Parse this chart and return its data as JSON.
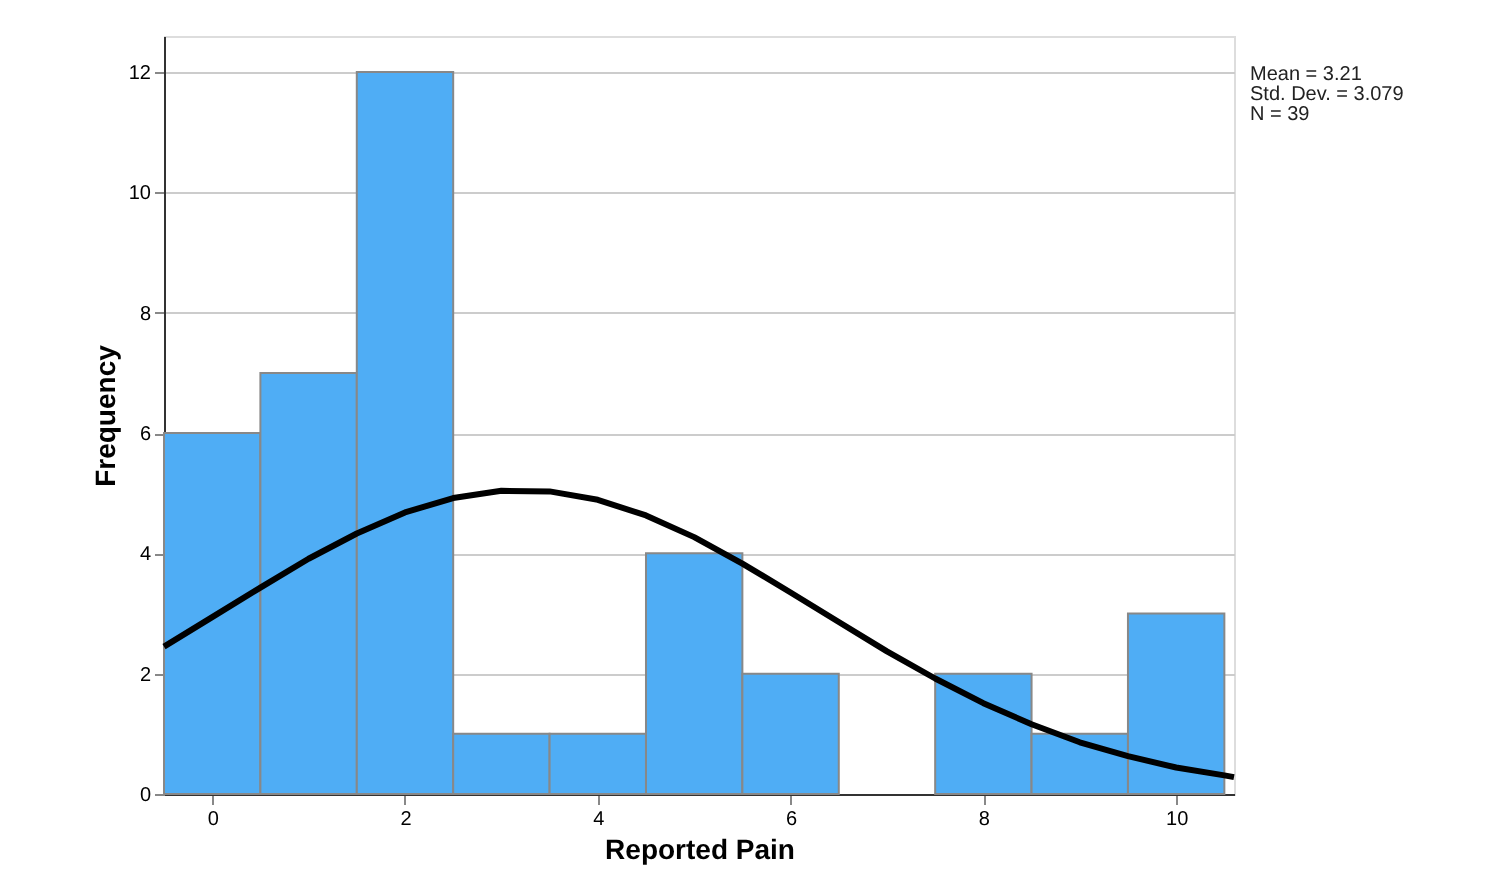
{
  "chart_data": {
    "type": "histogram",
    "xlabel": "Reported Pain",
    "ylabel": "Frequency",
    "bins": [
      -0.5,
      0.5,
      1.5,
      2.5,
      3.5,
      4.5,
      5.5,
      6.5,
      7.5,
      8.5,
      9.5,
      10.5
    ],
    "values": [
      6,
      7,
      12,
      1,
      1,
      4,
      2,
      0,
      2,
      1,
      3
    ],
    "color": "#4fadf5",
    "series": [
      {
        "type": "line",
        "color": "#000000",
        "x": [
          -0.5,
          0,
          0.5,
          1,
          1.5,
          2,
          2.5,
          3,
          3.5,
          4,
          4.5,
          5,
          5.5,
          6,
          6.5,
          7,
          7.5,
          8,
          8.5,
          9,
          9.5,
          10,
          10.5,
          10.6
        ],
        "values": [
          2.45,
          2.94,
          3.43,
          3.91,
          4.33,
          4.68,
          4.92,
          5.04,
          5.03,
          4.89,
          4.63,
          4.27,
          3.83,
          3.35,
          2.86,
          2.37,
          1.92,
          1.51,
          1.16,
          0.86,
          0.63,
          0.44,
          0.31,
          0.28
        ]
      }
    ],
    "xlim": [
      -0.5,
      10.6
    ],
    "ylim": [
      0,
      12.6
    ],
    "xticks": [
      0,
      2,
      4,
      6,
      8,
      10
    ],
    "yticks": [
      0,
      2,
      4,
      6,
      8,
      10,
      12
    ],
    "grid": "y",
    "annotations": [
      "Mean = 3.21",
      "Std. Dev. = 3.079",
      "N = 39"
    ]
  }
}
